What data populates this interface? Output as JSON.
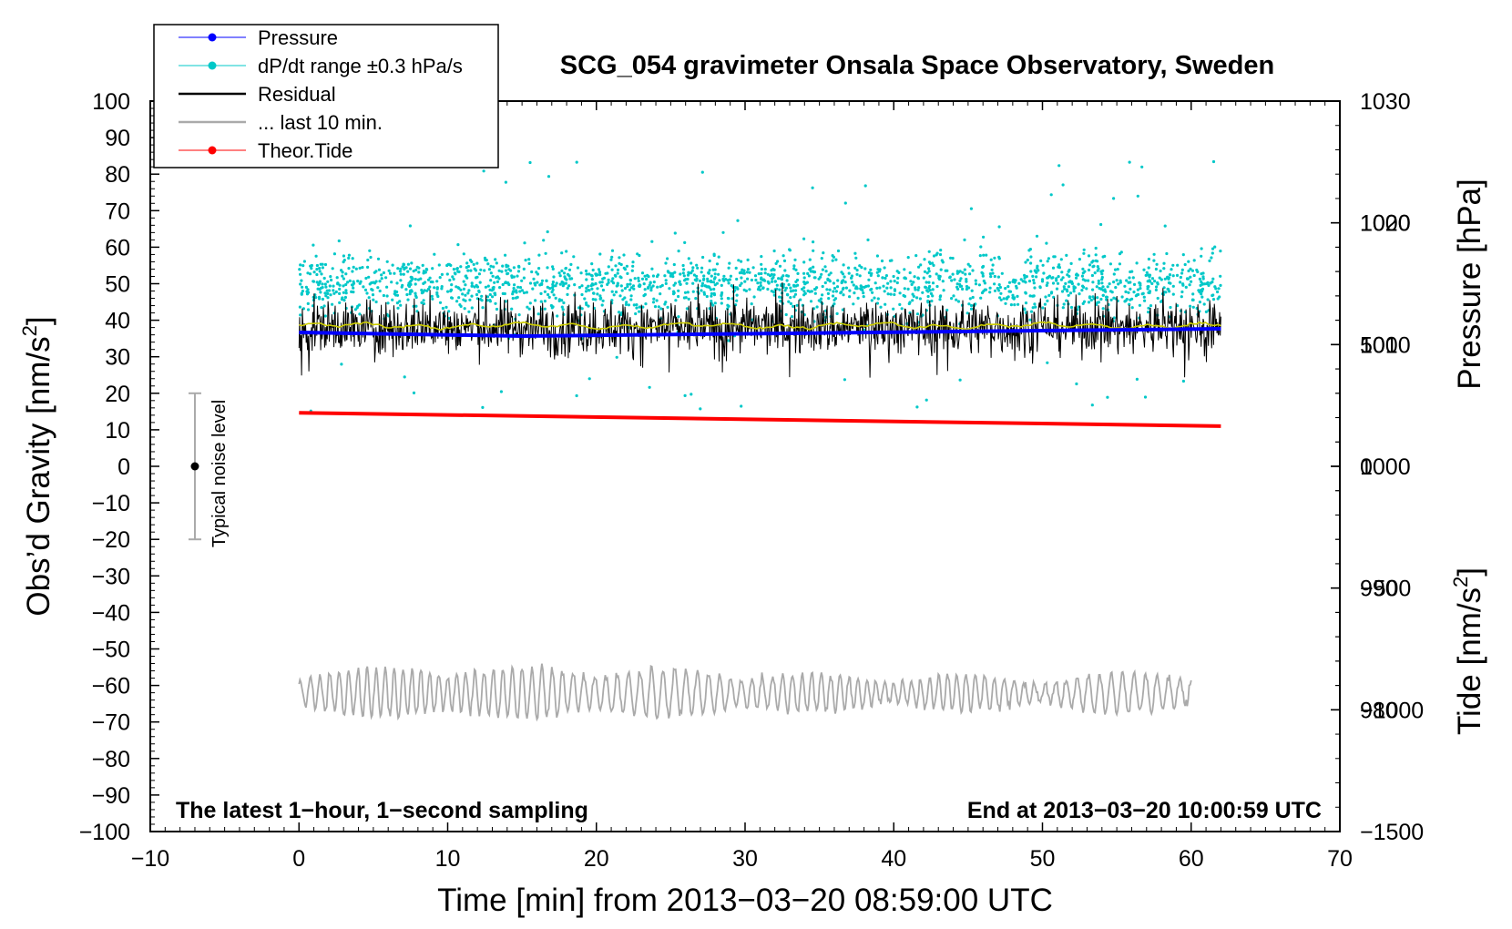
{
  "chart_data": {
    "type": "line",
    "title": "SCG_054 gravimeter Onsala Space Observatory, Sweden",
    "xlabel": "Time [min] from 2013−03−20 08:59:00 UTC",
    "ylabel_left_main": "Obs’d Gravity [nm/s",
    "ylabel_left_sup": "2",
    "ylabel_left_end": "]",
    "ylabel_right_pressure": "Pressure [hPa]",
    "ylabel_right_tide_main": "Tide [nm/s",
    "ylabel_right_tide_sup": "2",
    "ylabel_right_tide_end": "]",
    "xlim": [
      -10,
      70
    ],
    "x_ticks": [
      -10,
      0,
      10,
      20,
      30,
      40,
      50,
      60,
      70
    ],
    "x_tick_labels": [
      "−10",
      "0",
      "10",
      "20",
      "30",
      "40",
      "50",
      "60",
      "70"
    ],
    "ylim": [
      -100,
      100
    ],
    "y_ticks": [
      100,
      90,
      80,
      70,
      60,
      50,
      40,
      30,
      20,
      10,
      0,
      -10,
      -20,
      -30,
      -40,
      -50,
      -60,
      -70,
      -80,
      -90,
      -100
    ],
    "y_tick_labels": [
      "100",
      "90",
      "80",
      "70",
      "60",
      "50",
      "40",
      "30",
      "20",
      "10",
      "0",
      "−10",
      "−20",
      "−30",
      "−40",
      "−50",
      "−60",
      "−70",
      "−80",
      "−90",
      "−100"
    ],
    "pressure_axis": {
      "range": [
        970,
        1030
      ],
      "ticks": [
        1030,
        1020,
        1010,
        1000,
        990,
        980
      ],
      "labels": [
        "1030",
        "1020",
        "1010",
        "1000",
        "990",
        "980"
      ]
    },
    "tide_axis": {
      "range": [
        -1500,
        1500
      ],
      "ticks": [
        1000,
        500,
        0,
        -500,
        -1000,
        -1500
      ],
      "labels": [
        "1000",
        "500",
        "0",
        "−500",
        "−1000",
        "−1500"
      ]
    },
    "legend": {
      "position": "top-left",
      "entries": [
        {
          "label": "Pressure",
          "color": "#0000ff",
          "style": "line-dot"
        },
        {
          "label": "dP/dt range ±0.3 hPa/s",
          "color": "#00c8c8",
          "style": "line-dot"
        },
        {
          "label": "Residual",
          "color": "#000000",
          "style": "line"
        },
        {
          "label": "... last 10 min.",
          "color": "#aaaaaa",
          "style": "line"
        },
        {
          "label": "Theor.Tide",
          "color": "#ff0000",
          "style": "line-dot"
        }
      ]
    },
    "series": [
      {
        "name": "Pressure",
        "axis": "pressure",
        "color": "#0000ff",
        "x": [
          0,
          15,
          62
        ],
        "values": [
          1011.0,
          1010.7,
          1011.3
        ]
      },
      {
        "name": "dP/dt range",
        "axis": "gravity",
        "color": "#00c8c8",
        "x_range": [
          0,
          62
        ],
        "center": 50,
        "spread": 5
      },
      {
        "name": "Residual",
        "axis": "gravity",
        "color": "#000000",
        "x_range": [
          0,
          62
        ],
        "center": 38,
        "spread": 5
      },
      {
        "name": "Residual smoothed",
        "axis": "gravity",
        "color": "#cccc00",
        "x_range": [
          0,
          62
        ],
        "center": 38.5
      },
      {
        "name": "Theor.Tide",
        "axis": "tide",
        "color": "#ff0000",
        "x": [
          0,
          62
        ],
        "values": [
          220,
          165
        ]
      },
      {
        "name": "... last 10 min.",
        "axis": "gravity",
        "color": "#aaaaaa",
        "x_range": [
          0,
          60
        ],
        "center": -62,
        "spread": 6
      }
    ],
    "noise_bar": {
      "label": "Typical noise level",
      "x": -7,
      "center": 0,
      "low": -20,
      "high": 20
    },
    "annotations": {
      "bottom_left": "The latest 1−hour, 1−second sampling",
      "bottom_right": "End at 2013−03−20 10:00:59 UTC"
    },
    "colors": {
      "pressure": "#0000ff",
      "dpdt": "#00c8c8",
      "residual": "#000000",
      "smooth": "#cccc00",
      "last10": "#aaaaaa",
      "tide": "#ff0000"
    }
  }
}
